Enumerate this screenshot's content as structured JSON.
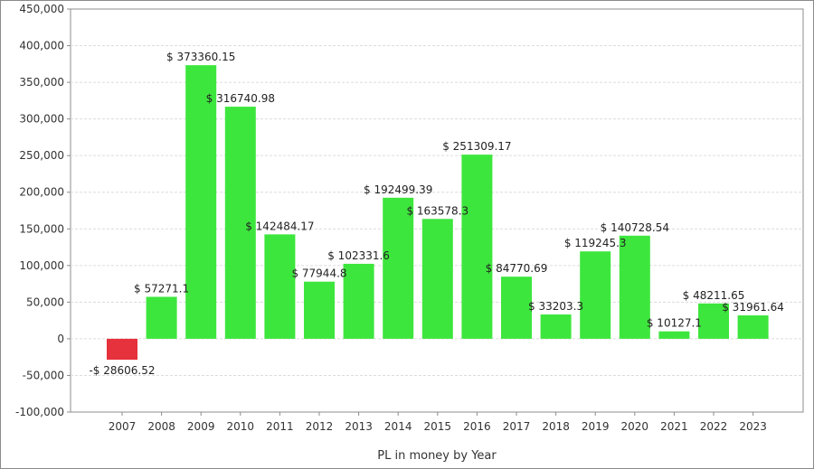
{
  "chart_data": {
    "type": "bar",
    "xlabel": "PL in money by Year",
    "ylabel": "",
    "ylim": [
      -100000,
      450000
    ],
    "yticks": [
      -100000,
      -50000,
      0,
      50000,
      100000,
      150000,
      200000,
      250000,
      300000,
      350000,
      400000,
      450000
    ],
    "ytick_labels": [
      "-100,000",
      "-50,000",
      "0",
      "50,000",
      "100,000",
      "150,000",
      "200,000",
      "250,000",
      "300,000",
      "350,000",
      "400,000",
      "450,000"
    ],
    "grid": true,
    "categories": [
      "2007",
      "2008",
      "2009",
      "2010",
      "2011",
      "2012",
      "2013",
      "2014",
      "2015",
      "2016",
      "2017",
      "2018",
      "2019",
      "2020",
      "2021",
      "2022",
      "2023"
    ],
    "values": [
      -28606.52,
      57271.1,
      373360.15,
      316740.98,
      142484.17,
      77944.8,
      102331.6,
      192499.39,
      163578.3,
      251309.17,
      84770.69,
      33203.3,
      119245.3,
      140728.54,
      10127.1,
      48211.65,
      31961.64
    ],
    "data_labels": [
      "-$ 28606.52",
      "$ 57271.1",
      "$ 373360.15",
      "$ 316740.98",
      "$ 142484.17",
      "$ 77944.8",
      "$ 102331.6",
      "$ 192499.39",
      "$ 163578.3",
      "$ 251309.17",
      "$ 84770.69",
      "$ 33203.3",
      "$ 119245.3",
      "$ 140728.54",
      "$ 10127.1",
      "$ 48211.65",
      "$ 31961.64"
    ],
    "colors": {
      "positive": "#3de63d",
      "negative": "#e6323c",
      "grid": "#dcdcdc",
      "axis": "#8c8c8c",
      "plot_background": "#ffffff"
    }
  }
}
